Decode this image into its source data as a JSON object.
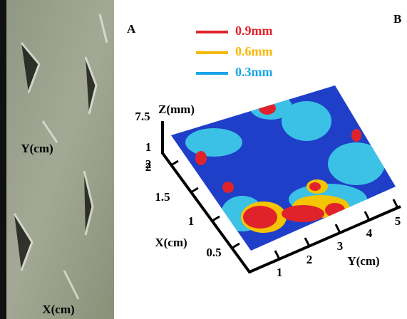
{
  "panel_a": {
    "label": "A",
    "y_label": "Y(cm)",
    "x_label": "X(cm)"
  },
  "panel_b": {
    "label": "B",
    "legend": [
      {
        "label": "0.9mm",
        "color": "#e0232a"
      },
      {
        "label": "0.6mm",
        "color": "#f5b800"
      },
      {
        "label": "0.3mm",
        "color": "#1aa3e8"
      }
    ],
    "z_label": "Z(mm)",
    "z_ticks": [
      "7.5",
      "1",
      "2"
    ],
    "x_label": "X(cm)",
    "x_ticks": [
      "2",
      "1.5",
      "1",
      "0.5"
    ],
    "y_label": "Y(cm)",
    "y_ticks": [
      "1",
      "2",
      "3",
      "4",
      "5"
    ]
  }
}
